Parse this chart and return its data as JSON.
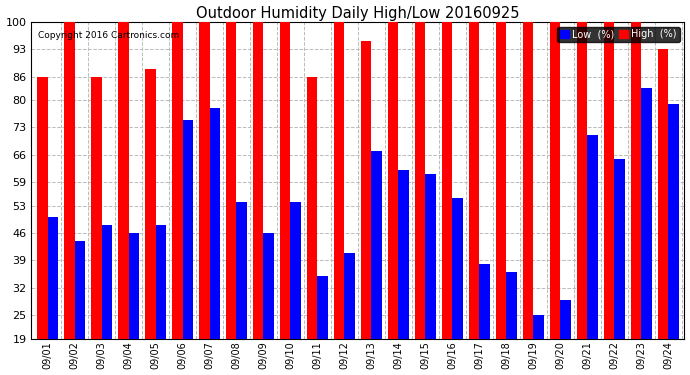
{
  "title": "Outdoor Humidity Daily High/Low 20160925",
  "copyright": "Copyright 2016 Cartronics.com",
  "legend_low_label": "Low  (%)",
  "legend_high_label": "High  (%)",
  "low_color": "#0000ff",
  "high_color": "#ff0000",
  "background_color": "#ffffff",
  "ylim_min": 19,
  "ylim_max": 100,
  "yticks": [
    19,
    25,
    32,
    39,
    46,
    53,
    59,
    66,
    73,
    80,
    86,
    93,
    100
  ],
  "grid_color": "#bbbbbb",
  "categories": [
    "09/01",
    "09/02",
    "09/03",
    "09/04",
    "09/05",
    "09/06",
    "09/07",
    "09/08",
    "09/09",
    "09/10",
    "09/11",
    "09/12",
    "09/13",
    "09/14",
    "09/15",
    "09/16",
    "09/17",
    "09/18",
    "09/19",
    "09/20",
    "09/21",
    "09/22",
    "09/23",
    "09/24"
  ],
  "high_values": [
    86,
    100,
    86,
    100,
    88,
    100,
    100,
    100,
    100,
    100,
    86,
    100,
    95,
    100,
    100,
    100,
    100,
    100,
    100,
    100,
    100,
    100,
    100,
    93
  ],
  "low_values": [
    50,
    44,
    48,
    46,
    48,
    75,
    78,
    54,
    46,
    54,
    35,
    41,
    67,
    62,
    61,
    55,
    38,
    36,
    25,
    29,
    71,
    65,
    83,
    79
  ]
}
